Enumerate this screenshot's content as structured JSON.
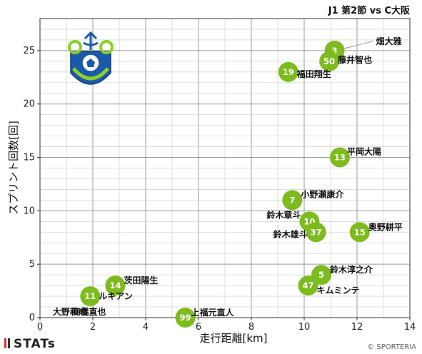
{
  "header": {
    "match": "J1 第2節 vs C大阪"
  },
  "footer": {
    "brand": "STATs",
    "credit": "© SPORTERIA"
  },
  "chart_data": {
    "type": "scatter",
    "title": "J1 第2節 vs C大阪",
    "xlabel": "走行距離[km]",
    "ylabel": "スプリント回数[回]",
    "xlim": [
      0,
      14
    ],
    "ylim": [
      0,
      28
    ],
    "xticks": [
      0,
      2,
      4,
      6,
      8,
      10,
      12,
      14
    ],
    "yticks": [
      0,
      5,
      10,
      15,
      20,
      25
    ],
    "grid": true,
    "point_color": "#7dbb1f",
    "points": [
      {
        "number": "3",
        "name": "畑大雅",
        "x": 11.15,
        "y": 25
      },
      {
        "number": "50",
        "name": "藤井智也",
        "x": 10.95,
        "y": 24
      },
      {
        "number": "19",
        "name": "福田翔生",
        "x": 9.4,
        "y": 23
      },
      {
        "number": "13",
        "name": "平岡大陽",
        "x": 11.35,
        "y": 15
      },
      {
        "number": "7",
        "name": "小野瀬康介",
        "x": 9.55,
        "y": 11
      },
      {
        "number": "10",
        "name": "鈴木章斗",
        "x": 10.2,
        "y": 9
      },
      {
        "number": "37",
        "name": "鈴木雄斗",
        "x": 10.45,
        "y": 8
      },
      {
        "number": "15",
        "name": "奥野耕平",
        "x": 12.1,
        "y": 8
      },
      {
        "number": "5",
        "name": "鈴木淳之介",
        "x": 10.65,
        "y": 4
      },
      {
        "number": "47",
        "name": "キムミンテ",
        "x": 10.15,
        "y": 3
      },
      {
        "number": "14",
        "name": "茨田陽生",
        "x": 2.85,
        "y": 3
      },
      {
        "number": "11",
        "name": "ルキアン",
        "x": 1.9,
        "y": 2
      },
      {
        "number": "99",
        "name": "上福元直人",
        "x": 5.5,
        "y": 0
      },
      {
        "number": "",
        "name": "大野和成",
        "x": 0.75,
        "y": 0
      },
      {
        "number": "",
        "name": "高橋直也",
        "x": 1.2,
        "y": 0
      }
    ]
  }
}
